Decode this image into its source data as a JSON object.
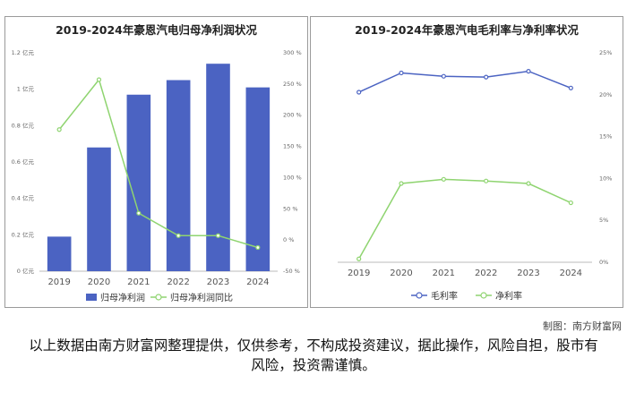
{
  "chart_data": [
    {
      "type": "bar",
      "title": "2019-2024年豪恩汽电归母净利润状况",
      "categories": [
        "2019",
        "2020",
        "2021",
        "2022",
        "2023",
        "2024"
      ],
      "series": [
        {
          "name": "归母净利润",
          "type": "bar",
          "axis": "left",
          "values": [
            0.19,
            0.68,
            0.97,
            1.05,
            1.14,
            1.01
          ],
          "color": "#4b63c2"
        },
        {
          "name": "归母净利润同比",
          "type": "line",
          "axis": "right",
          "values": [
            177,
            257,
            43,
            7,
            7,
            -12
          ],
          "color": "#8fd470"
        }
      ],
      "y_left": {
        "ylim": [
          0,
          1.2
        ],
        "ticks": [
          "0 亿元",
          "0.2 亿元",
          "0.4 亿元",
          "0.6 亿元",
          "0.8 亿元",
          "1 亿元",
          "1.2 亿元"
        ]
      },
      "y_right": {
        "ylim": [
          -50,
          300
        ],
        "ticks": [
          "-50 %",
          "0 %",
          "50 %",
          "100 %",
          "150 %",
          "200 %",
          "250 %",
          "300 %"
        ]
      },
      "grid": false,
      "legend": "bottom"
    },
    {
      "type": "line",
      "title": "2019-2024年豪恩汽电毛利率与净利率状况",
      "categories": [
        "2019",
        "2020",
        "2021",
        "2022",
        "2023",
        "2024"
      ],
      "series": [
        {
          "name": "毛利率",
          "values": [
            20.3,
            22.6,
            22.2,
            22.1,
            22.8,
            20.8
          ],
          "color": "#4b63c2"
        },
        {
          "name": "净利率",
          "values": [
            0.4,
            9.4,
            9.9,
            9.7,
            9.4,
            7.1
          ],
          "color": "#8fd470"
        }
      ],
      "y_right": {
        "ylim": [
          0,
          25
        ],
        "ticks": [
          "0%",
          "5%",
          "10%",
          "15%",
          "20%",
          "25%"
        ]
      },
      "grid": false,
      "legend": "bottom"
    }
  ],
  "credit": "制图：南方财富网",
  "disclaimer": "以上数据由南方财富网整理提供，仅供参考，不构成投资建议，据此操作，风险自担，股市有风险，投资需谨慎。"
}
